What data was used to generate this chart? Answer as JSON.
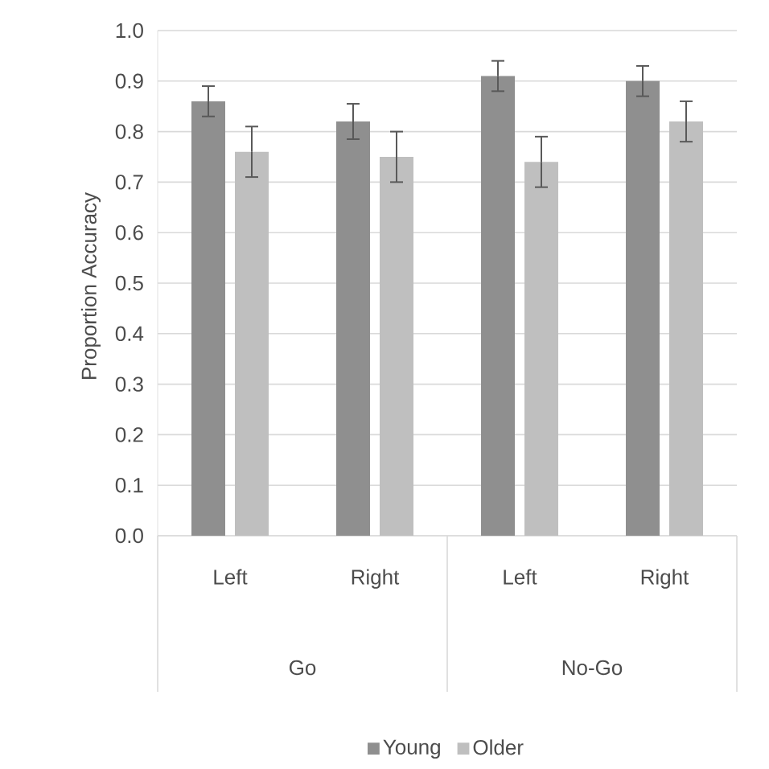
{
  "chart_data": {
    "type": "bar",
    "ylabel": "Proportion Accuracy",
    "categories": [
      "Left",
      "Right",
      "Left",
      "Right"
    ],
    "annotations": [
      "Go",
      "No-Go"
    ],
    "series": [
      {
        "name": "Young",
        "color": "#8f8f8f",
        "values": [
          0.86,
          0.82,
          0.91,
          0.9
        ],
        "errors": [
          0.03,
          0.035,
          0.03,
          0.03
        ]
      },
      {
        "name": "Older",
        "color": "#bfbfbf",
        "values": [
          0.76,
          0.75,
          0.74,
          0.82
        ],
        "errors": [
          0.05,
          0.05,
          0.05,
          0.04
        ]
      }
    ],
    "ylim": [
      0,
      1
    ],
    "yticks": [
      {
        "value": 0,
        "label": "0.0"
      },
      {
        "value": 0.1,
        "label": "0.1"
      },
      {
        "value": 0.2,
        "label": "0.2"
      },
      {
        "value": 0.3,
        "label": "0.3"
      },
      {
        "value": 0.4,
        "label": "0.4"
      },
      {
        "value": 0.5,
        "label": "0.5"
      },
      {
        "value": 0.6,
        "label": "0.6"
      },
      {
        "value": 0.7,
        "label": "0.7"
      },
      {
        "value": 0.8,
        "label": "0.8"
      },
      {
        "value": 0.9,
        "label": "0.9"
      },
      {
        "value": 1,
        "label": "1.0"
      }
    ],
    "grid": "y",
    "legend": "bottom"
  }
}
